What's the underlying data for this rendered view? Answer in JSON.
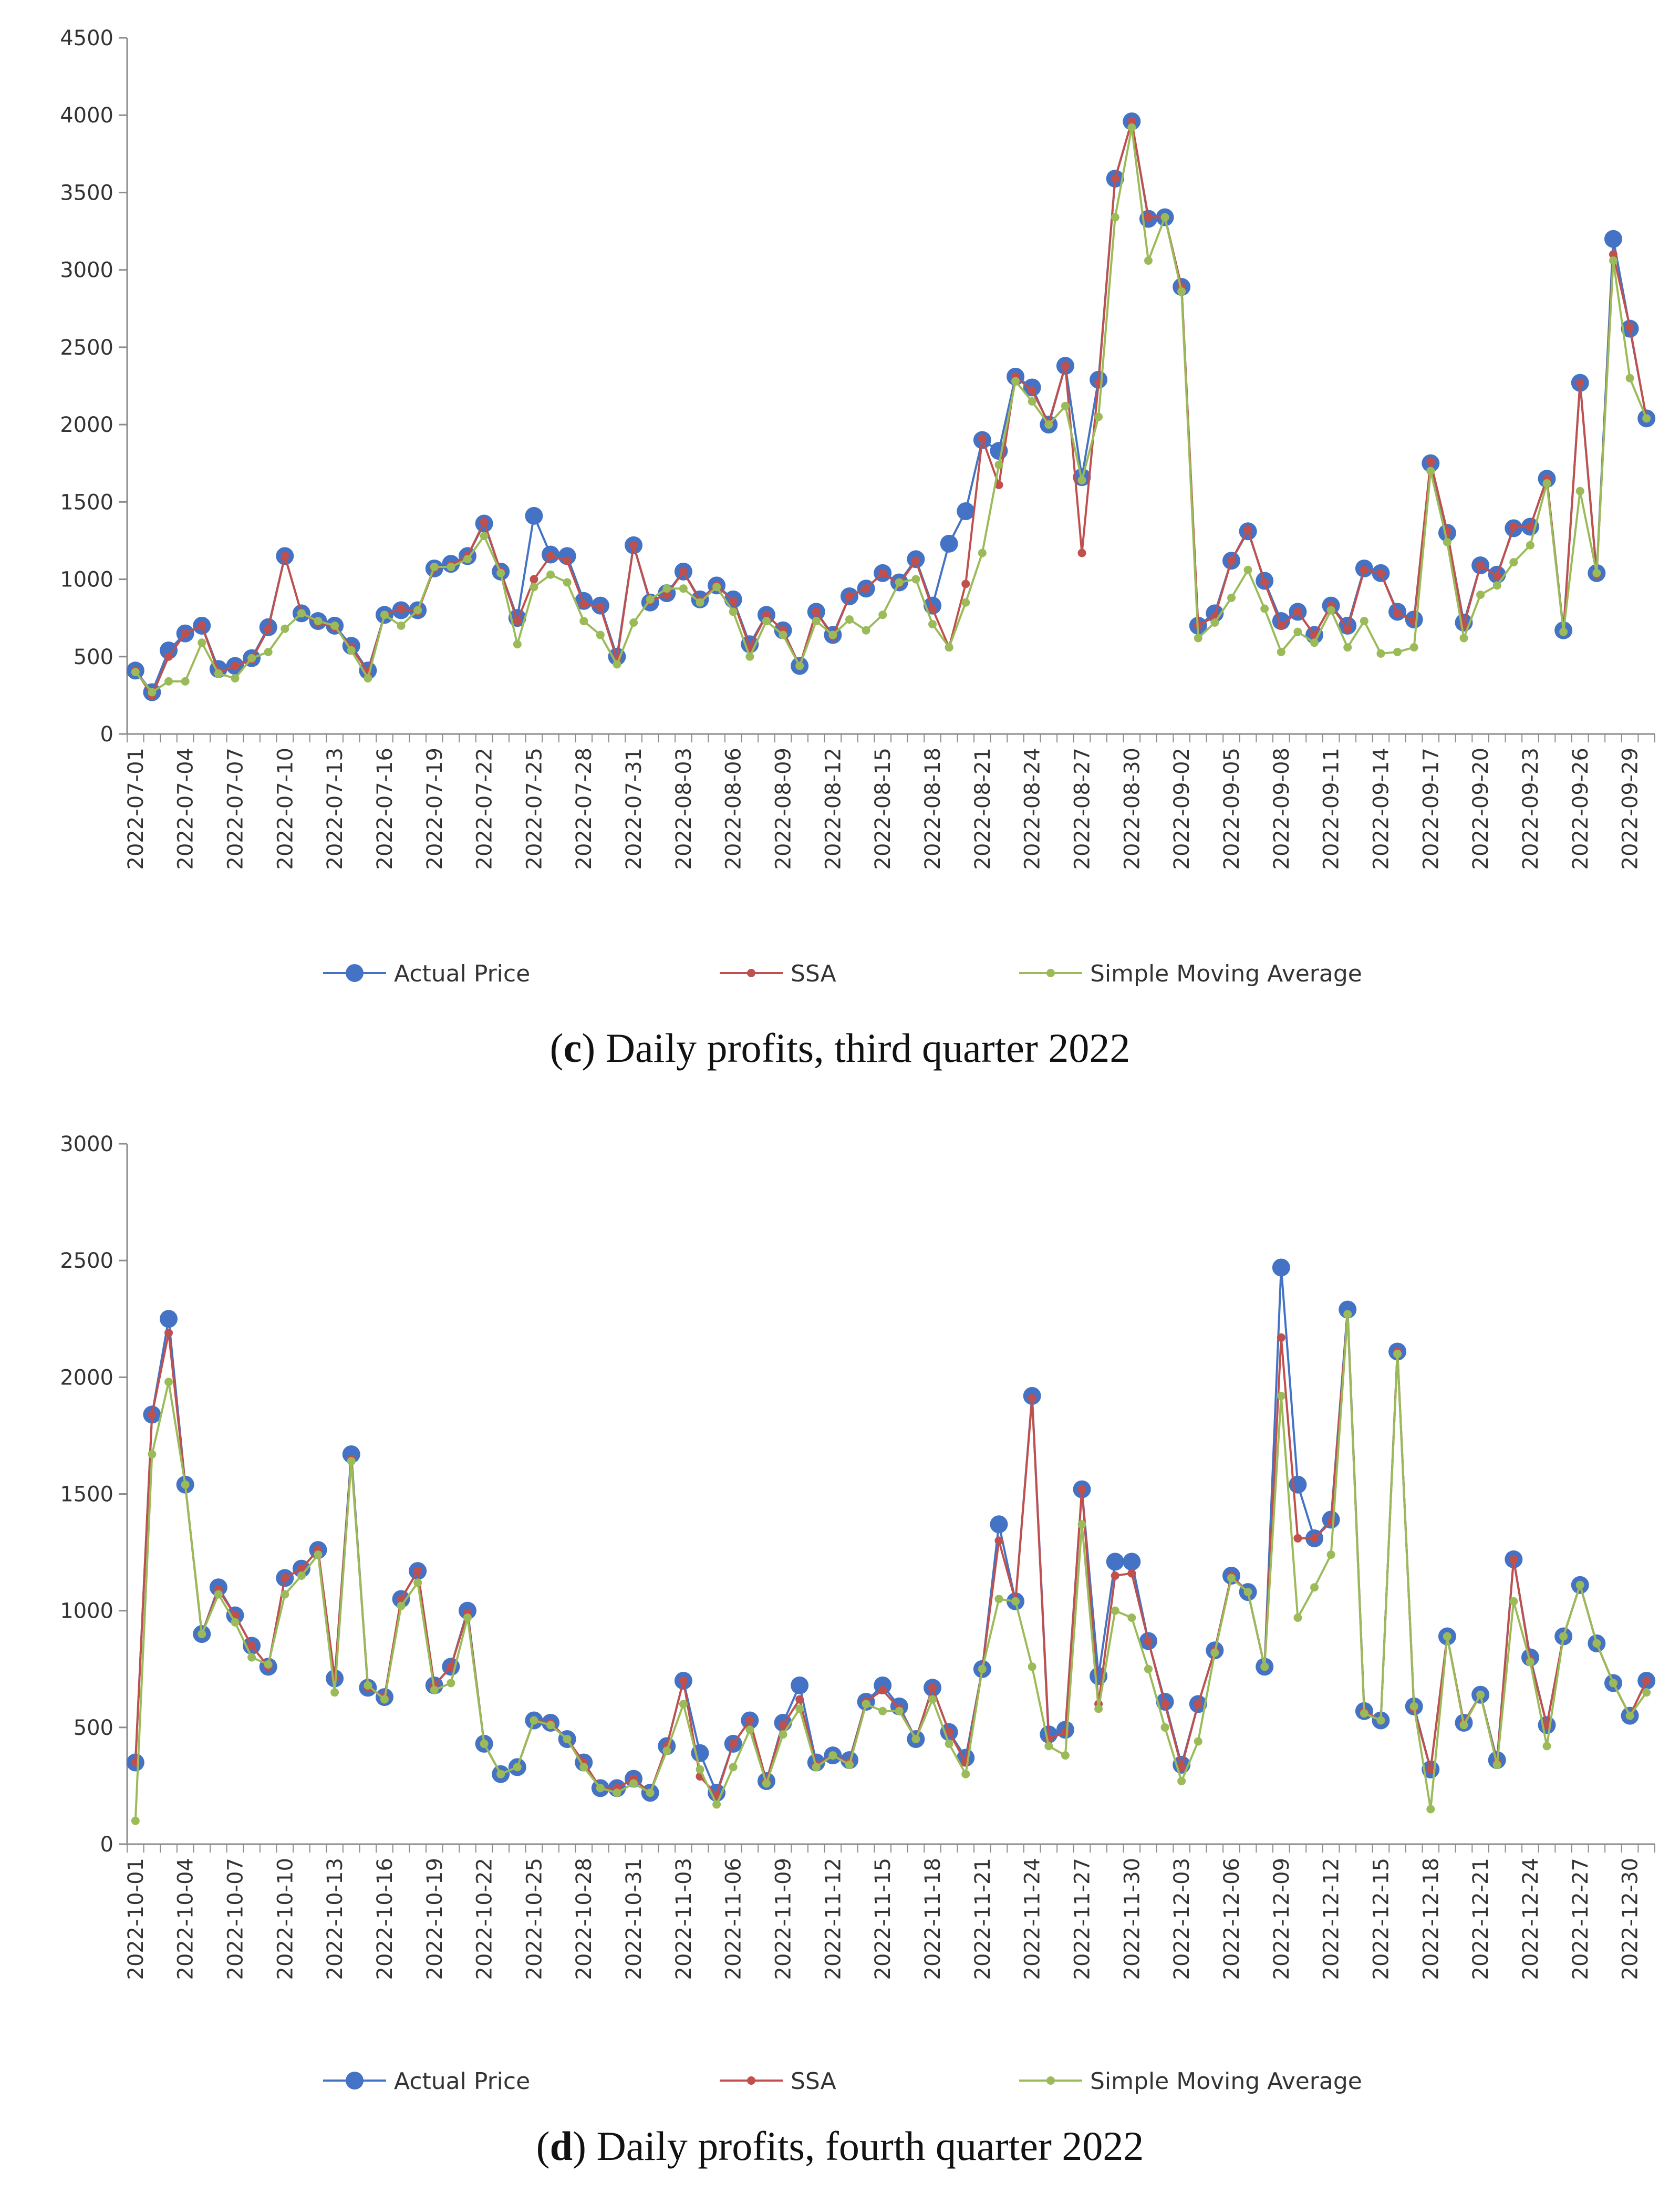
{
  "colors": {
    "actual": "#4472C4",
    "ssa": "#C0504D",
    "sma": "#9BBB59",
    "axis": "#8c8c8c",
    "grid": "#d9d9d9"
  },
  "legend": {
    "actual": "Actual Price",
    "ssa": "SSA",
    "sma": "Simple Moving Average"
  },
  "chart_data": [
    {
      "type": "line",
      "caption_letter": "c",
      "caption_text": ") Daily profits, third quarter 2022",
      "ylim": [
        0,
        4500
      ],
      "yticks": [
        "0",
        "500",
        "1000",
        "1500",
        "2000",
        "2500",
        "3000",
        "3500",
        "4000",
        "4500"
      ],
      "grid": false,
      "legend_position": "bottom",
      "start_date": "2022-07-01",
      "n_points": 92,
      "xtick_labels": [
        "2022-07-01",
        "2022-07-04",
        "2022-07-07",
        "2022-07-10",
        "2022-07-13",
        "2022-07-16",
        "2022-07-19",
        "2022-07-22",
        "2022-07-25",
        "2022-07-28",
        "2022-07-31",
        "2022-08-03",
        "2022-08-06",
        "2022-08-09",
        "2022-08-12",
        "2022-08-15",
        "2022-08-18",
        "2022-08-21",
        "2022-08-24",
        "2022-08-27",
        "2022-08-30",
        "2022-09-02",
        "2022-09-05",
        "2022-09-08",
        "2022-09-11",
        "2022-09-14",
        "2022-09-17",
        "2022-09-20",
        "2022-09-23",
        "2022-09-26",
        "2022-09-29"
      ],
      "series": [
        {
          "name": "Actual Price",
          "values": [
            410,
            270,
            540,
            650,
            700,
            420,
            440,
            490,
            690,
            1150,
            780,
            730,
            700,
            570,
            410,
            770,
            800,
            800,
            1070,
            1100,
            1150,
            1360,
            1050,
            750,
            1410,
            1160,
            1150,
            860,
            830,
            500,
            1220,
            850,
            910,
            1050,
            870,
            960,
            870,
            580,
            770,
            670,
            440,
            790,
            640,
            890,
            940,
            1040,
            980,
            1130,
            830,
            1230,
            1440,
            1900,
            1830,
            2310,
            2240,
            2000,
            2380,
            1660,
            2290,
            3590,
            3960,
            3330,
            3340,
            2890,
            700,
            780,
            1120,
            1310,
            990,
            730,
            790,
            640,
            830,
            700,
            1070,
            1040,
            790,
            740,
            1750,
            1300,
            720,
            1090,
            1030,
            1330,
            1340,
            1650,
            670,
            2270,
            1040,
            3200,
            2620,
            2040
          ]
        },
        {
          "name": "SSA",
          "values": [
            410,
            250,
            500,
            650,
            700,
            400,
            440,
            480,
            680,
            1150,
            780,
            720,
            690,
            560,
            400,
            770,
            810,
            790,
            1070,
            1090,
            1150,
            1370,
            1050,
            730,
            1000,
            1150,
            1120,
            840,
            820,
            480,
            1220,
            860,
            900,
            1050,
            860,
            960,
            860,
            560,
            770,
            670,
            440,
            790,
            630,
            890,
            940,
            1040,
            970,
            1120,
            810,
            560,
            970,
            1910,
            1610,
            2310,
            2220,
            2010,
            2380,
            1170,
            2270,
            3590,
            3960,
            3340,
            3340,
            2890,
            700,
            760,
            1120,
            1320,
            980,
            700,
            790,
            640,
            830,
            680,
            1060,
            1040,
            780,
            730,
            1760,
            1310,
            700,
            1090,
            1020,
            1340,
            1340,
            1650,
            660,
            2270,
            1030,
            3100,
            2630,
            2040
          ]
        },
        {
          "name": "Simple Moving Average",
          "values": [
            400,
            270,
            340,
            340,
            590,
            390,
            360,
            490,
            530,
            680,
            780,
            730,
            700,
            540,
            360,
            770,
            700,
            800,
            1080,
            1080,
            1130,
            1280,
            1040,
            580,
            950,
            1030,
            980,
            730,
            640,
            450,
            720,
            870,
            940,
            940,
            850,
            950,
            790,
            500,
            730,
            640,
            440,
            730,
            640,
            740,
            670,
            770,
            980,
            1000,
            710,
            560,
            850,
            1170,
            1740,
            2280,
            2150,
            2000,
            2120,
            1640,
            2050,
            3340,
            3920,
            3060,
            3340,
            2860,
            620,
            720,
            880,
            1060,
            810,
            530,
            660,
            590,
            800,
            560,
            730,
            520,
            530,
            560,
            1700,
            1240,
            620,
            900,
            960,
            1110,
            1220,
            1620,
            660,
            1570,
            1040,
            3060,
            2300,
            2040
          ]
        }
      ]
    },
    {
      "type": "line",
      "caption_letter": "d",
      "caption_text": ") Daily profits, fourth quarter 2022",
      "ylim": [
        0,
        3000
      ],
      "yticks": [
        "0",
        "500",
        "1000",
        "1500",
        "2000",
        "2500",
        "3000"
      ],
      "grid": false,
      "legend_position": "bottom",
      "start_date": "2022-10-01",
      "n_points": 92,
      "xtick_labels": [
        "2022-10-01",
        "2022-10-04",
        "2022-10-07",
        "2022-10-10",
        "2022-10-13",
        "2022-10-16",
        "2022-10-19",
        "2022-10-22",
        "2022-10-25",
        "2022-10-28",
        "2022-10-31",
        "2022-11-03",
        "2022-11-06",
        "2022-11-09",
        "2022-11-12",
        "2022-11-15",
        "2022-11-18",
        "2022-11-21",
        "2022-11-24",
        "2022-11-27",
        "2022-11-30",
        "2022-12-03",
        "2022-12-06",
        "2022-12-09",
        "2022-12-12",
        "2022-12-15",
        "2022-12-18",
        "2022-12-21",
        "2022-12-24",
        "2022-12-27",
        "2022-12-30"
      ],
      "series": [
        {
          "name": "Actual Price",
          "values": [
            350,
            1840,
            2250,
            1540,
            900,
            1100,
            980,
            850,
            760,
            1140,
            1180,
            1260,
            710,
            1670,
            670,
            630,
            1050,
            1170,
            680,
            760,
            1000,
            430,
            300,
            330,
            530,
            520,
            450,
            350,
            240,
            240,
            280,
            220,
            420,
            700,
            390,
            220,
            430,
            530,
            270,
            520,
            680,
            350,
            380,
            360,
            610,
            680,
            590,
            450,
            670,
            480,
            370,
            750,
            1370,
            1040,
            1920,
            470,
            490,
            1520,
            720,
            1210,
            1210,
            870,
            610,
            340,
            600,
            830,
            1150,
            1080,
            760,
            2470,
            1540,
            1310,
            1390,
            2290,
            570,
            530,
            2110,
            590,
            320,
            890,
            520,
            640,
            360,
            1220,
            800,
            510,
            890,
            1110,
            860,
            690,
            550,
            700
          ]
        },
        {
          "name": "SSA",
          "values": [
            350,
            1840,
            2190,
            1540,
            900,
            1090,
            980,
            850,
            760,
            1140,
            1180,
            1260,
            710,
            1650,
            670,
            630,
            1050,
            1170,
            680,
            760,
            990,
            430,
            300,
            330,
            530,
            520,
            450,
            350,
            240,
            240,
            280,
            220,
            420,
            700,
            290,
            210,
            430,
            530,
            270,
            510,
            620,
            340,
            380,
            350,
            610,
            660,
            580,
            450,
            670,
            480,
            350,
            750,
            1300,
            1040,
            1910,
            450,
            480,
            1520,
            600,
            1150,
            1160,
            870,
            600,
            330,
            600,
            830,
            1150,
            1080,
            760,
            2170,
            1310,
            1310,
            1380,
            2270,
            570,
            530,
            2110,
            580,
            320,
            890,
            520,
            640,
            350,
            1220,
            790,
            510,
            890,
            1110,
            860,
            690,
            550,
            700
          ]
        },
        {
          "name": "Simple Moving Average",
          "values": [
            100,
            1670,
            1980,
            1540,
            900,
            1070,
            950,
            800,
            770,
            1070,
            1150,
            1240,
            650,
            1640,
            680,
            620,
            1020,
            1120,
            660,
            690,
            970,
            430,
            300,
            330,
            530,
            510,
            450,
            330,
            240,
            220,
            260,
            220,
            400,
            600,
            320,
            170,
            330,
            490,
            260,
            470,
            580,
            330,
            380,
            340,
            600,
            570,
            570,
            450,
            620,
            430,
            300,
            750,
            1050,
            1040,
            760,
            420,
            380,
            1370,
            580,
            1000,
            970,
            750,
            500,
            270,
            440,
            820,
            1140,
            1080,
            760,
            1920,
            970,
            1100,
            1240,
            2270,
            560,
            530,
            2100,
            590,
            150,
            890,
            510,
            640,
            340,
            1040,
            780,
            420,
            890,
            1110,
            860,
            690,
            550,
            650
          ]
        }
      ]
    }
  ]
}
